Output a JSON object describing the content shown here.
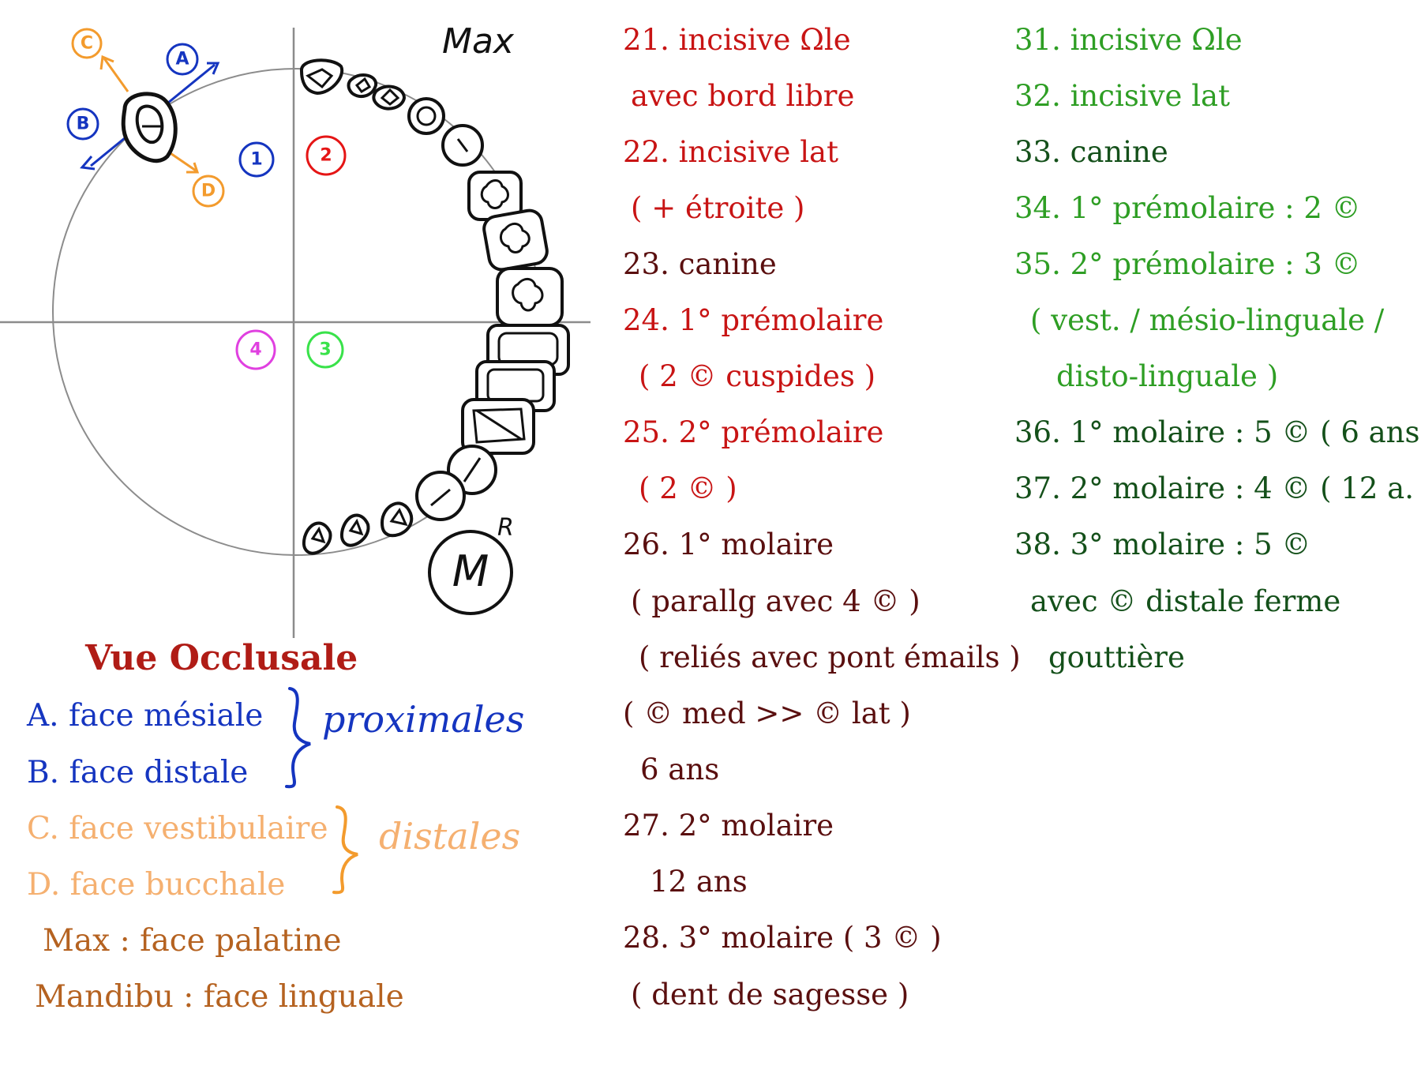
{
  "colors": {
    "maxillary_red": "#c81414",
    "maxillary_dark": "#5a0f0f",
    "mandible_green": "#2e9e24",
    "mandible_dark": "#14501a",
    "blue": "#1535c0",
    "orange": "#f39b2d",
    "light_orange": "#f5b070",
    "brown": "#b56220",
    "pink": "#e040e0",
    "quadrant_green": "#39e24a",
    "title_red": "#b01c16"
  },
  "diagram": {
    "max_label": "Max",
    "r_label": "R",
    "m_label": "M",
    "quadrants": [
      "1",
      "2",
      "3",
      "4"
    ],
    "faces": [
      "A",
      "B",
      "C",
      "D"
    ]
  },
  "title": "Vue Occlusale",
  "legend": [
    {
      "text": "A. face mésiale",
      "color": "#1535c0"
    },
    {
      "text": "B. face distale",
      "color": "#1535c0"
    },
    {
      "text": "C. face vestibulaire",
      "color": "#f5b070"
    },
    {
      "text": "D. face bucchale",
      "color": "#f5b070"
    },
    {
      "text": "Max : face palatine",
      "color": "#b56220"
    },
    {
      "text": "Mandibu : face linguale",
      "color": "#b56220"
    }
  ],
  "handwritten": {
    "proximales": "proximales",
    "distales": "distales"
  },
  "maxillary_column": [
    {
      "text": "21. incisive Ωle",
      "color": "#c81414"
    },
    {
      "text": "avec bord libre",
      "color": "#c81414"
    },
    {
      "text": "22. incisive lat",
      "color": "#c81414"
    },
    {
      "text": "( + étroite )",
      "color": "#c81414"
    },
    {
      "text": "23. canine",
      "color": "#5a0f0f"
    },
    {
      "text": "24. 1° prémolaire",
      "color": "#c81414"
    },
    {
      "text": "( 2  © cuspides )",
      "color": "#c81414"
    },
    {
      "text": "25. 2° prémolaire",
      "color": "#c81414"
    },
    {
      "text": "( 2 © )",
      "color": "#c81414"
    },
    {
      "text": "26. 1° molaire",
      "color": "#5a0f0f"
    },
    {
      "text": "( parallg avec 4 © )",
      "color": "#5a0f0f"
    },
    {
      "text": "( reliés avec pont émails )",
      "color": "#5a0f0f"
    },
    {
      "text": "( © med >> © lat )",
      "color": "#5a0f0f"
    },
    {
      "text": "6 ans",
      "color": "#5a0f0f"
    },
    {
      "text": "27. 2° molaire",
      "color": "#5a0f0f"
    },
    {
      "text": "12 ans",
      "color": "#5a0f0f"
    },
    {
      "text": "28. 3° molaire  ( 3 © )",
      "color": "#5a0f0f"
    },
    {
      "text": "( dent de sagesse )",
      "color": "#5a0f0f"
    }
  ],
  "mandible_column": [
    {
      "text": "31. incisive Ωle",
      "color": "#2e9e24"
    },
    {
      "text": "32. incisive lat",
      "color": "#2e9e24"
    },
    {
      "text": "33. canine",
      "color": "#14501a"
    },
    {
      "text": "34. 1° prémolaire : 2 ©",
      "color": "#2e9e24"
    },
    {
      "text": "35. 2° prémolaire : 3 ©",
      "color": "#2e9e24"
    },
    {
      "text": "( vest. / mésio-linguale /",
      "color": "#2e9e24"
    },
    {
      "text": "disto-linguale )",
      "color": "#2e9e24"
    },
    {
      "text": "36. 1° molaire : 5 © ( 6 ans",
      "color": "#14501a"
    },
    {
      "text": "37. 2° molaire : 4 © ( 12 a.",
      "color": "#14501a"
    },
    {
      "text": "38. 3° molaire : 5 ©",
      "color": "#14501a"
    },
    {
      "text": "avec © distale ferme",
      "color": "#14501a"
    },
    {
      "text": "gouttière",
      "color": "#14501a"
    }
  ]
}
